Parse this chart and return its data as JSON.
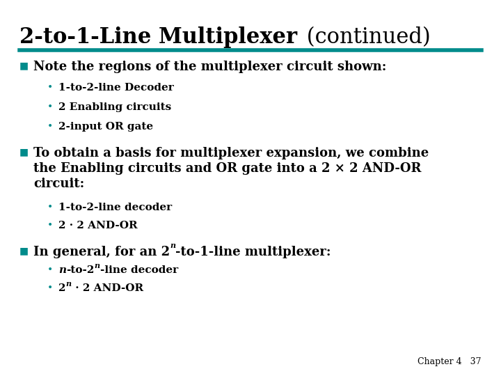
{
  "bg_color": "#ffffff",
  "title_bold": "2-to-1-Line Multiplexer",
  "title_normal": " (continued)",
  "separator_color": "#008b8b",
  "bullet_color": "#008b8b",
  "footer_text": "Chapter 4   37",
  "title_fontsize": 22,
  "body_fontsize": 13,
  "sub_fontsize": 11,
  "footer_fontsize": 9
}
